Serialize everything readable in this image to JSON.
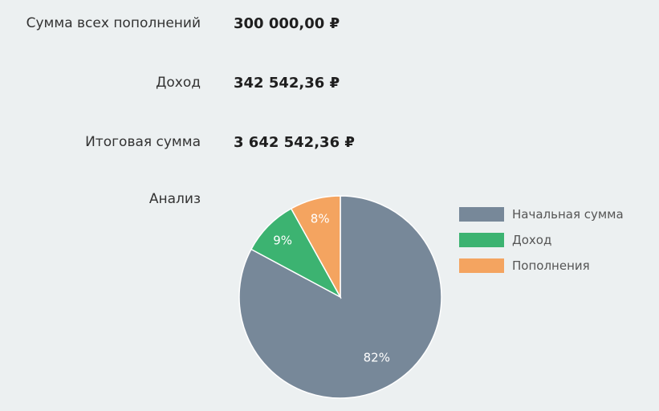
{
  "summary": {
    "total_deposits_label": "Сумма всех пополнений",
    "total_deposits_value": "300 000,00 ₽",
    "income_label": "Доход",
    "income_value": "342 542,36 ₽",
    "final_sum_label": "Итоговая сумма",
    "final_sum_value": "3 642 542,36 ₽",
    "analysis_label": "Анализ"
  },
  "colors": {
    "initial": "#778899",
    "income": "#3cb371",
    "deposits": "#f4a460"
  },
  "chart_data": {
    "type": "pie",
    "categories": [
      "Начальная сумма",
      "Доход",
      "Пополнения"
    ],
    "values": [
      82,
      9,
      8
    ],
    "labels": [
      "82%",
      "9%",
      "8%"
    ],
    "legend_position": "right"
  }
}
